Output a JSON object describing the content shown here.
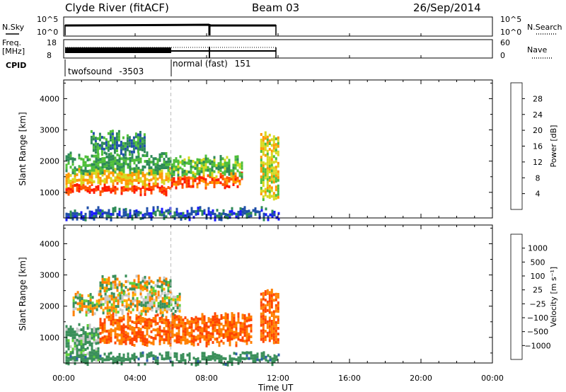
{
  "header": {
    "site": "Clyde River (fitACF)",
    "beam": "Beam 03",
    "date": "26/Sep/2014"
  },
  "strip_panels": {
    "nsky": {
      "label": "N.Sky",
      "left_ticks": [
        "10^5",
        "10^0"
      ],
      "right_ticks": [
        "10^5",
        "10^0"
      ],
      "right_label": "N.Search"
    },
    "freq": {
      "label_top": "Freq.",
      "label_bottom": "[MHz]",
      "left_ticks": [
        "18",
        "8"
      ],
      "right_ticks": [
        "60",
        "0"
      ],
      "right_label": "Nave"
    },
    "cpid": {
      "label": "CPID",
      "modes": [
        {
          "name": "twofsound",
          "id": "-3503",
          "start_hour": 0,
          "end_hour": 6
        },
        {
          "name": "normal (fast)",
          "id": "151",
          "start_hour": 6,
          "end_hour": 12
        }
      ]
    }
  },
  "colors": {
    "power": [
      "#1a1aff",
      "#1f4fa8",
      "#2e8b57",
      "#4fbf3a",
      "#d8d820",
      "#ff9900",
      "#ff5500",
      "#ff1a00"
    ],
    "velocity": [
      "#1f3fbf",
      "#2e5fa8",
      "#3a8f5a",
      "#5fcf3a",
      "#c8c8c8",
      "#ffb000",
      "#ff8000",
      "#ff4500",
      "#ff0000"
    ]
  },
  "chart_data": [
    {
      "type": "heatmap",
      "name": "power",
      "ylabel": "Slant Range [km]",
      "xlabel": "Time UT",
      "x_ticks": [
        "00:00",
        "04:00",
        "08:00",
        "12:00",
        "16:00",
        "20:00",
        "00:00"
      ],
      "x_range_hours": [
        0,
        24
      ],
      "y_ticks": [
        1000,
        2000,
        3000,
        4000
      ],
      "ylim": [
        180,
        4600
      ],
      "colorbar": {
        "label": "Power [dB]",
        "ticks": [
          "4",
          "8",
          "12",
          "16",
          "20",
          "24",
          "28"
        ],
        "range": [
          0,
          32
        ]
      },
      "data_time_range_hours": [
        0.1,
        12.0
      ],
      "bands": [
        {
          "from_hour": 0.1,
          "to_hour": 6,
          "range_km": [
            1050,
            1250
          ],
          "level": 28
        },
        {
          "from_hour": 0.1,
          "to_hour": 6,
          "range_km": [
            1300,
            1700
          ],
          "level": 20
        },
        {
          "from_hour": 0.1,
          "to_hour": 6,
          "range_km": [
            1700,
            2200
          ],
          "level": 12
        },
        {
          "from_hour": 6,
          "to_hour": 10,
          "range_km": [
            1200,
            1550
          ],
          "level": 26
        },
        {
          "from_hour": 6,
          "to_hour": 10,
          "range_km": [
            1600,
            2100
          ],
          "level": 14
        },
        {
          "from_hour": 1.5,
          "to_hour": 4.5,
          "range_km": [
            2300,
            2900
          ],
          "level": 10
        },
        {
          "from_hour": 0.1,
          "to_hour": 12,
          "range_km": [
            200,
            450
          ],
          "level": 6
        },
        {
          "from_hour": 11,
          "to_hour": 12,
          "range_km": [
            900,
            2900
          ],
          "level": 18
        }
      ]
    },
    {
      "type": "heatmap",
      "name": "velocity",
      "ylabel": "Slant Range [km]",
      "xlabel": "Time UT",
      "x_ticks": [
        "00:00",
        "04:00",
        "08:00",
        "12:00",
        "16:00",
        "20:00",
        "00:00"
      ],
      "x_range_hours": [
        0,
        24
      ],
      "y_ticks": [
        1000,
        2000,
        3000,
        4000
      ],
      "ylim": [
        180,
        4600
      ],
      "colorbar": {
        "label": "Velocity [m s⁻¹]",
        "ticks": [
          "1000",
          "500",
          "100",
          "25",
          "−25",
          "−100",
          "−500",
          "−1000"
        ]
      },
      "data_time_range_hours": [
        0.1,
        12.0
      ],
      "bands": [
        {
          "from_hour": 0.1,
          "to_hour": 2,
          "range_km": [
            400,
            1400
          ],
          "velocity": 100
        },
        {
          "from_hour": 2,
          "to_hour": 10.5,
          "range_km": [
            800,
            1700
          ],
          "velocity": -300
        },
        {
          "from_hour": 0.5,
          "to_hour": 6.5,
          "range_km": [
            1800,
            2400
          ],
          "velocity": 0
        },
        {
          "from_hour": 2,
          "to_hour": 6,
          "range_km": [
            2500,
            2900
          ],
          "velocity": 0
        },
        {
          "from_hour": 11,
          "to_hour": 12,
          "range_km": [
            900,
            2500
          ],
          "velocity": -300
        },
        {
          "from_hour": 0.1,
          "to_hour": 12,
          "range_km": [
            200,
            450
          ],
          "velocity": 200
        }
      ]
    }
  ]
}
